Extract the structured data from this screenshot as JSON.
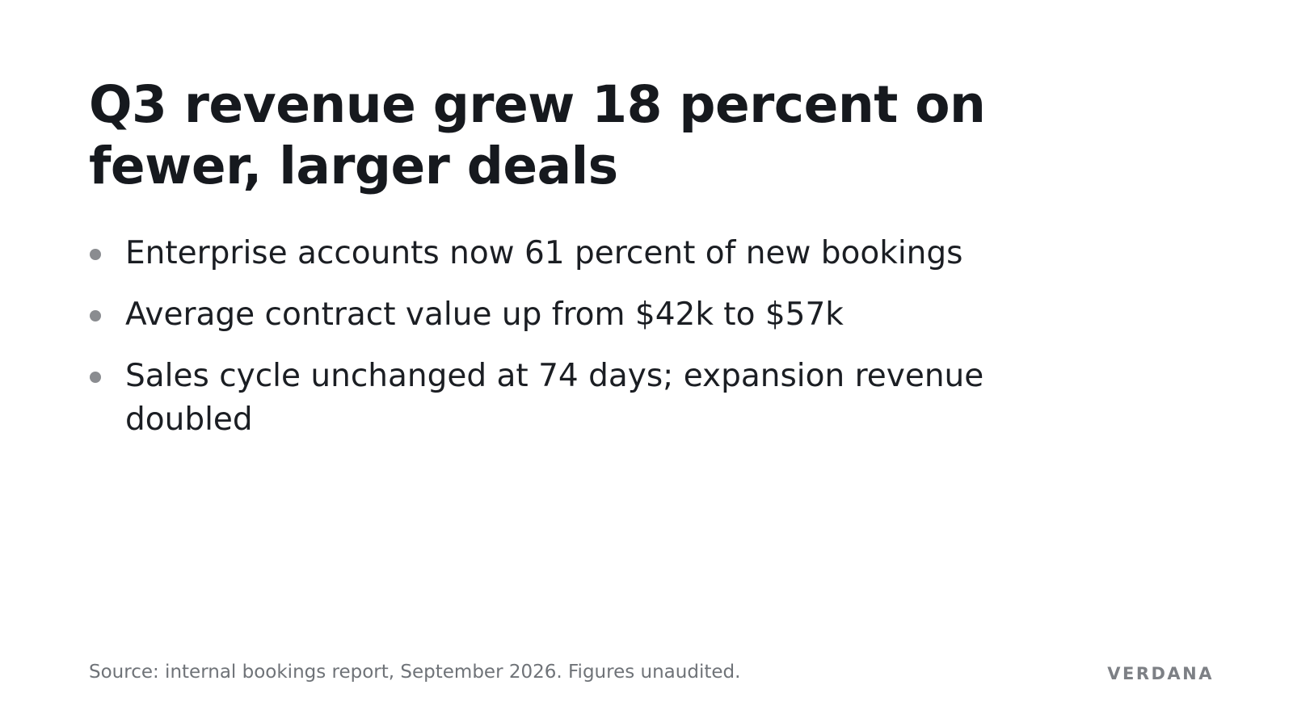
{
  "slide": {
    "title": "Q3 revenue grew 18 percent on fewer, larger deals",
    "bullets": [
      "Enterprise accounts now 61 percent of new bookings",
      "Average contract value up from $42k to $57k",
      "Sales cycle unchanged at 74 days; expansion revenue doubled"
    ],
    "source": "Source: internal bookings report, September 2026. Figures unaudited.",
    "brand": "VERDANA"
  },
  "colors": {
    "background": "#ffffff",
    "title_text": "#16191e",
    "body_text": "#1b1e23",
    "bullet_marker": "#8a8c90",
    "footnote_text": "#6f7378",
    "brand_text": "#7d8085"
  }
}
